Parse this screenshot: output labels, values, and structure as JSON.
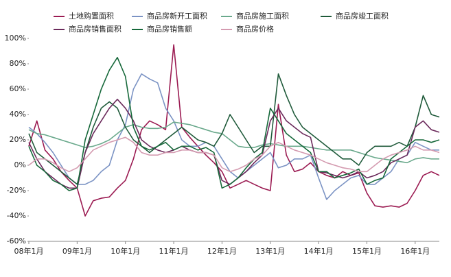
{
  "chart_data": {
    "type": "line",
    "categories": [
      "08年1月",
      null,
      null,
      null,
      null,
      null,
      "09年1月",
      null,
      null,
      null,
      null,
      null,
      "10年1月",
      null,
      null,
      null,
      null,
      null,
      "11年1月",
      null,
      null,
      null,
      null,
      null,
      "12年1月",
      null,
      null,
      null,
      null,
      null,
      "13年1月",
      null,
      null,
      null,
      null,
      null,
      "14年1月",
      null,
      null,
      null,
      null,
      null,
      "15年1月",
      null,
      null,
      null,
      null,
      null,
      "16年1月",
      null,
      null,
      null
    ],
    "series": [
      {
        "name": "土地购置面积",
        "color": "#9b1b52",
        "values": [
          15,
          35,
          12,
          5,
          -5,
          -12,
          -18,
          -40,
          -28,
          -26,
          -25,
          -18,
          -12,
          5,
          28,
          35,
          32,
          28,
          95,
          30,
          22,
          15,
          8,
          2,
          -5,
          -18,
          -15,
          -12,
          -15,
          -18,
          -20,
          48,
          8,
          -5,
          -3,
          2,
          -5,
          -8,
          -10,
          -5,
          -8,
          -6,
          -22,
          -32,
          -33,
          -32,
          -33,
          -30,
          -20,
          -8,
          -5,
          -8
        ]
      },
      {
        "name": "商品房新开工面积",
        "color": "#7b93c4",
        "values": [
          30,
          25,
          18,
          10,
          0,
          -10,
          -15,
          -15,
          -12,
          -5,
          0,
          20,
          32,
          60,
          72,
          68,
          65,
          45,
          35,
          20,
          15,
          15,
          18,
          15,
          5,
          -5,
          -10,
          -5,
          0,
          5,
          10,
          -2,
          0,
          5,
          5,
          8,
          -10,
          -27,
          -20,
          -15,
          -10,
          -8,
          -15,
          -15,
          -10,
          -5,
          5,
          8,
          18,
          15,
          12,
          12
        ]
      },
      {
        "name": "商品房施工面积",
        "color": "#6aa98c",
        "values": [
          28,
          25,
          24,
          22,
          20,
          18,
          16,
          14,
          15,
          17,
          20,
          25,
          30,
          32,
          30,
          29,
          29,
          30,
          34,
          33,
          32,
          30,
          28,
          26,
          25,
          20,
          15,
          14,
          14,
          16,
          17,
          16,
          15,
          15,
          15,
          14,
          13,
          12,
          12,
          12,
          12,
          10,
          8,
          6,
          5,
          4,
          3,
          2,
          5,
          6,
          5,
          5
        ]
      },
      {
        "name": "商品房竣工面积",
        "color": "#1f5a3a",
        "values": [
          25,
          10,
          5,
          0,
          -5,
          -10,
          -15,
          10,
          30,
          45,
          50,
          45,
          30,
          20,
          15,
          10,
          15,
          20,
          25,
          30,
          25,
          20,
          18,
          15,
          25,
          40,
          30,
          20,
          10,
          15,
          15,
          72,
          55,
          40,
          30,
          25,
          20,
          15,
          10,
          5,
          5,
          0,
          10,
          15,
          15,
          15,
          18,
          15,
          30,
          55,
          40,
          38
        ]
      },
      {
        "name": "商品房销售面积",
        "color": "#6b2a5b",
        "values": [
          18,
          5,
          -5,
          -10,
          -15,
          -18,
          -18,
          10,
          25,
          35,
          45,
          52,
          45,
          35,
          20,
          15,
          12,
          10,
          12,
          15,
          12,
          10,
          10,
          8,
          -12,
          -15,
          -10,
          -5,
          2,
          8,
          35,
          45,
          35,
          30,
          25,
          22,
          -5,
          -6,
          -8,
          -10,
          -8,
          -5,
          -10,
          -8,
          -5,
          2,
          5,
          8,
          30,
          35,
          28,
          26
        ]
      },
      {
        "name": "商品房销售额",
        "color": "#16683a",
        "values": [
          15,
          0,
          -5,
          -12,
          -15,
          -20,
          -18,
          20,
          40,
          60,
          75,
          85,
          70,
          30,
          15,
          12,
          15,
          18,
          12,
          15,
          15,
          12,
          14,
          10,
          -18,
          -15,
          -10,
          -2,
          5,
          10,
          45,
          35,
          25,
          20,
          15,
          10,
          -5,
          -5,
          -10,
          -8,
          -6,
          -3,
          -15,
          -12,
          -10,
          5,
          10,
          15,
          20,
          20,
          18,
          20
        ]
      },
      {
        "name": "商品房价格",
        "color": "#d49bb0",
        "values": [
          0,
          5,
          5,
          2,
          -2,
          -5,
          -2,
          5,
          12,
          15,
          18,
          20,
          22,
          18,
          10,
          8,
          8,
          10,
          10,
          12,
          12,
          10,
          10,
          8,
          -2,
          -5,
          -3,
          0,
          5,
          8,
          15,
          18,
          15,
          12,
          10,
          8,
          5,
          2,
          0,
          -2,
          -3,
          -5,
          -5,
          0,
          5,
          8,
          10,
          12,
          15,
          12,
          12,
          10
        ]
      }
    ],
    "ylim": [
      -60,
      100
    ],
    "yticks": [
      {
        "value": -60,
        "label": "-60%"
      },
      {
        "value": -40,
        "label": "-40%"
      },
      {
        "value": -20,
        "label": "-20%"
      },
      {
        "value": 0,
        "label": "0%"
      },
      {
        "value": 20,
        "label": "20%"
      },
      {
        "value": 40,
        "label": "40%"
      },
      {
        "value": 60,
        "label": "60%"
      },
      {
        "value": 80,
        "label": "80%"
      },
      {
        "value": 100,
        "label": "100%"
      }
    ],
    "grid": false,
    "legend": "top"
  }
}
